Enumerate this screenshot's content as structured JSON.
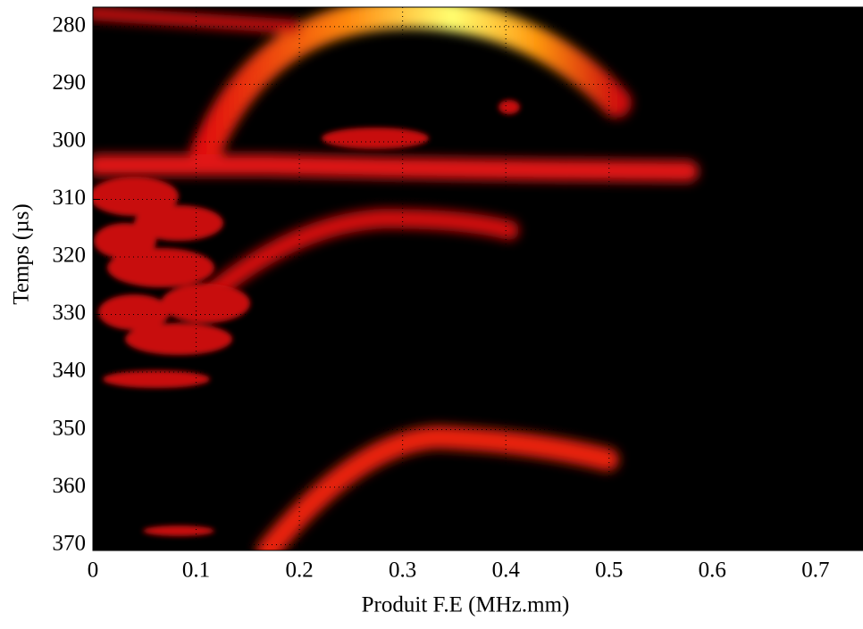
{
  "chart_data": {
    "type": "heatmap",
    "xlabel": "Produit F.E (MHz.mm)",
    "ylabel": "Temps (µs)",
    "xlim": [
      0,
      0.746
    ],
    "xticks": [
      0,
      0.1,
      0.2,
      0.3,
      0.4,
      0.5,
      0.6,
      0.7
    ],
    "ylim": [
      371,
      276.6
    ],
    "yticks": [
      280,
      290,
      300,
      310,
      320,
      330,
      340,
      350,
      360,
      370
    ],
    "grid": true
  }
}
